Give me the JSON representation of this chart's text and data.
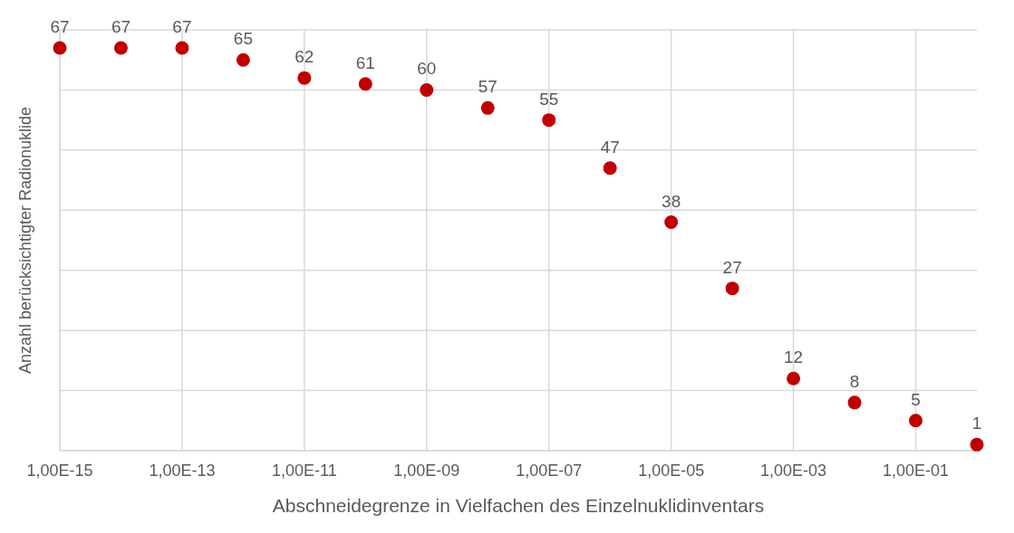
{
  "chart_data": {
    "type": "scatter",
    "xlabel": "Abschneidegrenze in Vielfachen des Einzelnuklidinventars",
    "ylabel": "Anzahl berücksichtigter Radionuklide",
    "categories": [
      "1,00E-15",
      null,
      "1,00E-13",
      null,
      "1,00E-11",
      null,
      "1,00E-09",
      null,
      "1,00E-07",
      null,
      "1,00E-05",
      null,
      "1,00E-03",
      null,
      "1,00E-01",
      null
    ],
    "series": [
      {
        "color": "#c00000",
        "values": [
          67,
          67,
          67,
          65,
          62,
          61,
          60,
          57,
          55,
          47,
          38,
          27,
          12,
          8,
          5,
          1
        ]
      }
    ],
    "ylim": [
      0,
      70
    ],
    "yticks": [
      {
        "value": 0,
        "label": null
      },
      {
        "value": 10,
        "label": null
      },
      {
        "value": 20,
        "label": null
      },
      {
        "value": 30,
        "label": null
      },
      {
        "value": 40,
        "label": null
      },
      {
        "value": 50,
        "label": null
      },
      {
        "value": 60,
        "label": null
      },
      {
        "value": 70,
        "label": null
      }
    ],
    "tick_labels": "x",
    "grid": true,
    "data_labels": true,
    "marker": "circle"
  }
}
